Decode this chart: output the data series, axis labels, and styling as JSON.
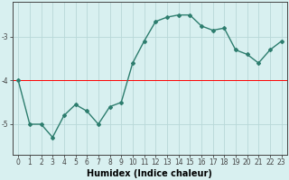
{
  "x": [
    0,
    1,
    2,
    3,
    4,
    5,
    6,
    7,
    8,
    9,
    10,
    11,
    12,
    13,
    14,
    15,
    16,
    17,
    18,
    19,
    20,
    21,
    22,
    23
  ],
  "y": [
    -4.0,
    -5.0,
    -5.0,
    -5.3,
    -4.8,
    -4.55,
    -4.7,
    -5.0,
    -4.6,
    -4.5,
    -3.6,
    -3.1,
    -2.65,
    -2.55,
    -2.5,
    -2.5,
    -2.75,
    -2.85,
    -2.8,
    -3.3,
    -3.4,
    -3.6,
    -3.3,
    -3.1
  ],
  "line_color": "#2d7d6e",
  "marker": "D",
  "marker_size": 2.0,
  "background_color": "#d8f0f0",
  "grid_color": "#b8d8d8",
  "xlabel": "Humidex (Indice chaleur)",
  "ylim": [
    -5.7,
    -2.2
  ],
  "xlim": [
    -0.5,
    23.5
  ],
  "yticks": [
    -5,
    -4,
    -3
  ],
  "xticks": [
    0,
    1,
    2,
    3,
    4,
    5,
    6,
    7,
    8,
    9,
    10,
    11,
    12,
    13,
    14,
    15,
    16,
    17,
    18,
    19,
    20,
    21,
    22,
    23
  ],
  "tick_label_fontsize": 5.5,
  "xlabel_fontsize": 7,
  "axis_color": "#444444",
  "red_line_y": -4.0,
  "line_width": 1.0
}
